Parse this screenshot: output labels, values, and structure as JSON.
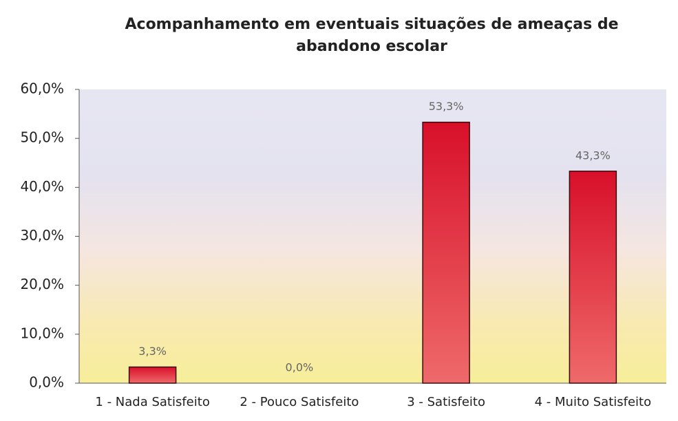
{
  "chart_data": {
    "type": "bar",
    "title": "Acompanhamento em eventuais situações de ameaças de abandono escolar",
    "categories": [
      "1 - Nada Satisfeito",
      "2 - Pouco Satisfeito",
      "3 - Satisfeito",
      "4 - Muito Satisfeito"
    ],
    "values": [
      3.3,
      0,
      53.3,
      43.3
    ],
    "value_labels": [
      "3,3%",
      "0,0%",
      "53,3%",
      "43,3%"
    ],
    "color": "#e0202c",
    "ylim": [
      0,
      60
    ],
    "yticks": [
      {
        "value": 0,
        "label": "0,0%"
      },
      {
        "value": 10,
        "label": "10,0%"
      },
      {
        "value": 20,
        "label": "20,0%"
      },
      {
        "value": 30,
        "label": "30,0%"
      },
      {
        "value": 40,
        "label": "40,0%"
      },
      {
        "value": 50,
        "label": "50,0%"
      },
      {
        "value": 60,
        "label": "60,0%"
      }
    ],
    "grid": false
  }
}
